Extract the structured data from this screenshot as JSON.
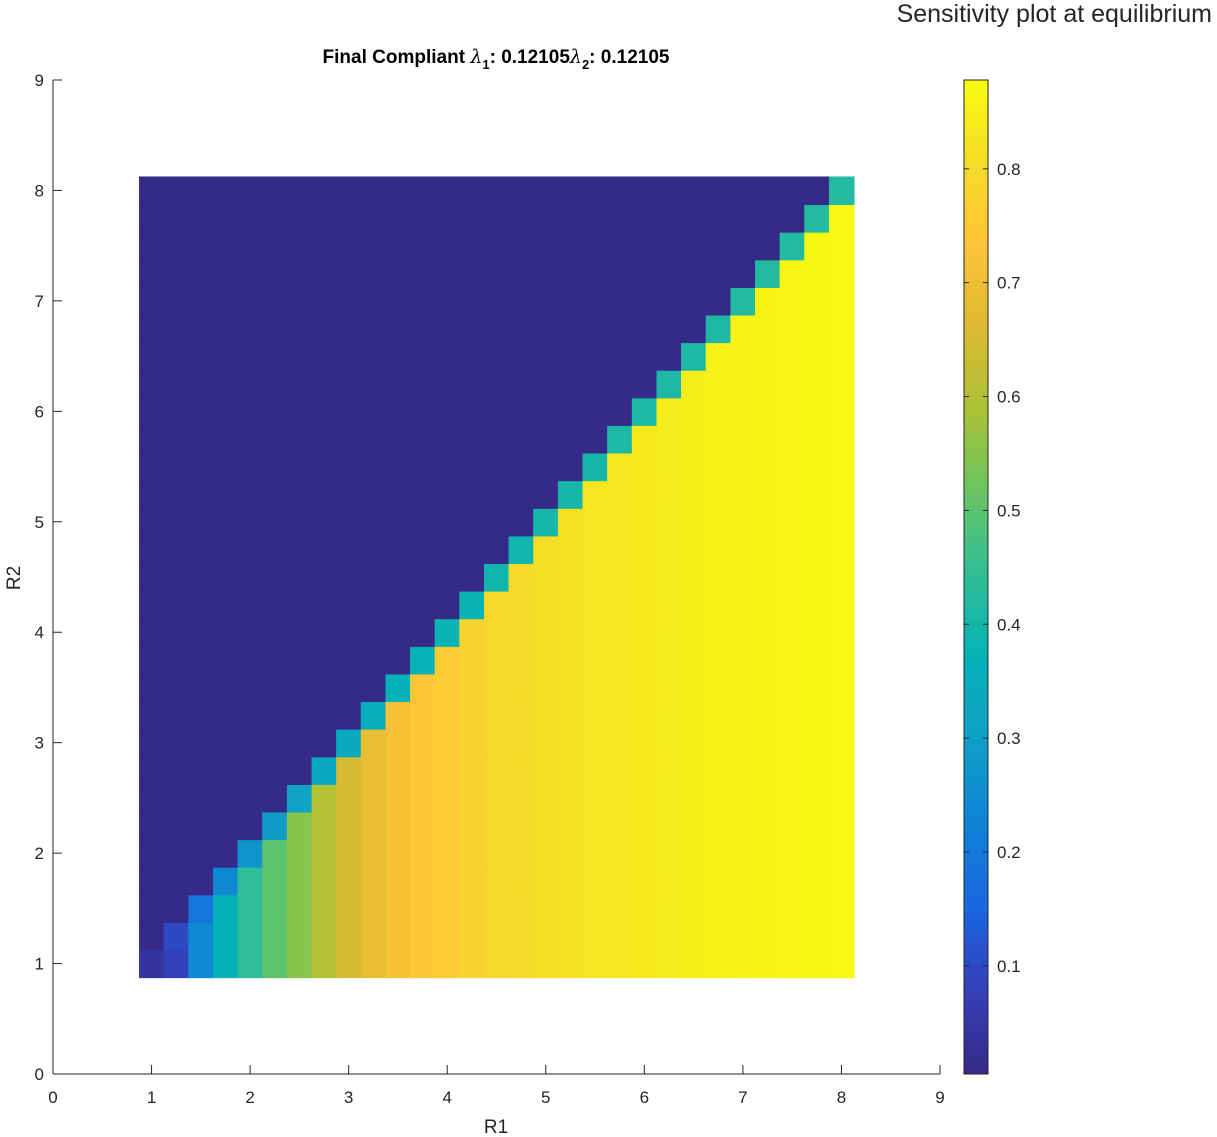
{
  "figure": {
    "suptitle": "Sensitivity plot at equilibrium"
  },
  "chart_data": {
    "type": "heatmap",
    "title": {
      "prefix": "Final Compliant ",
      "lambda1_value": ": 0.12105",
      "lambda2_value": ": 0.12105"
    },
    "xlabel": "R1",
    "ylabel": "R2",
    "xlim": [
      0,
      9
    ],
    "ylim": [
      0,
      9
    ],
    "xticks": [
      0,
      1,
      2,
      3,
      4,
      5,
      6,
      7,
      8,
      9
    ],
    "yticks": [
      0,
      1,
      2,
      3,
      4,
      5,
      6,
      7,
      8,
      9
    ],
    "grid": false,
    "colormap": "parula",
    "colorbar": {
      "range": [
        0.005,
        0.878
      ],
      "ticks": [
        0.1,
        0.2,
        0.3,
        0.4,
        0.5,
        0.6,
        0.7,
        0.8
      ]
    },
    "grid_axis": {
      "R1_start": 1.0,
      "R2_start": 1.0,
      "step": 0.25,
      "count": 29
    },
    "cells": {
      "above_diagonal": 0.005,
      "diagonal": [
        0.04,
        0.1,
        0.19,
        0.24,
        0.27,
        0.29,
        0.31,
        0.33,
        0.34,
        0.35,
        0.36,
        0.37,
        0.38,
        0.38,
        0.39,
        0.39,
        0.4,
        0.4,
        0.4,
        0.41,
        0.41,
        0.41,
        0.41,
        0.41,
        0.42,
        0.42,
        0.42,
        0.42,
        0.42
      ],
      "below_diagonal_by_column": [
        0.04,
        0.08,
        0.24,
        0.36,
        0.44,
        0.5,
        0.55,
        0.6,
        0.65,
        0.69,
        0.72,
        0.74,
        0.76,
        0.78,
        0.79,
        0.8,
        0.81,
        0.82,
        0.826,
        0.832,
        0.838,
        0.843,
        0.848,
        0.852,
        0.856,
        0.86,
        0.864,
        0.868,
        0.872
      ]
    }
  }
}
